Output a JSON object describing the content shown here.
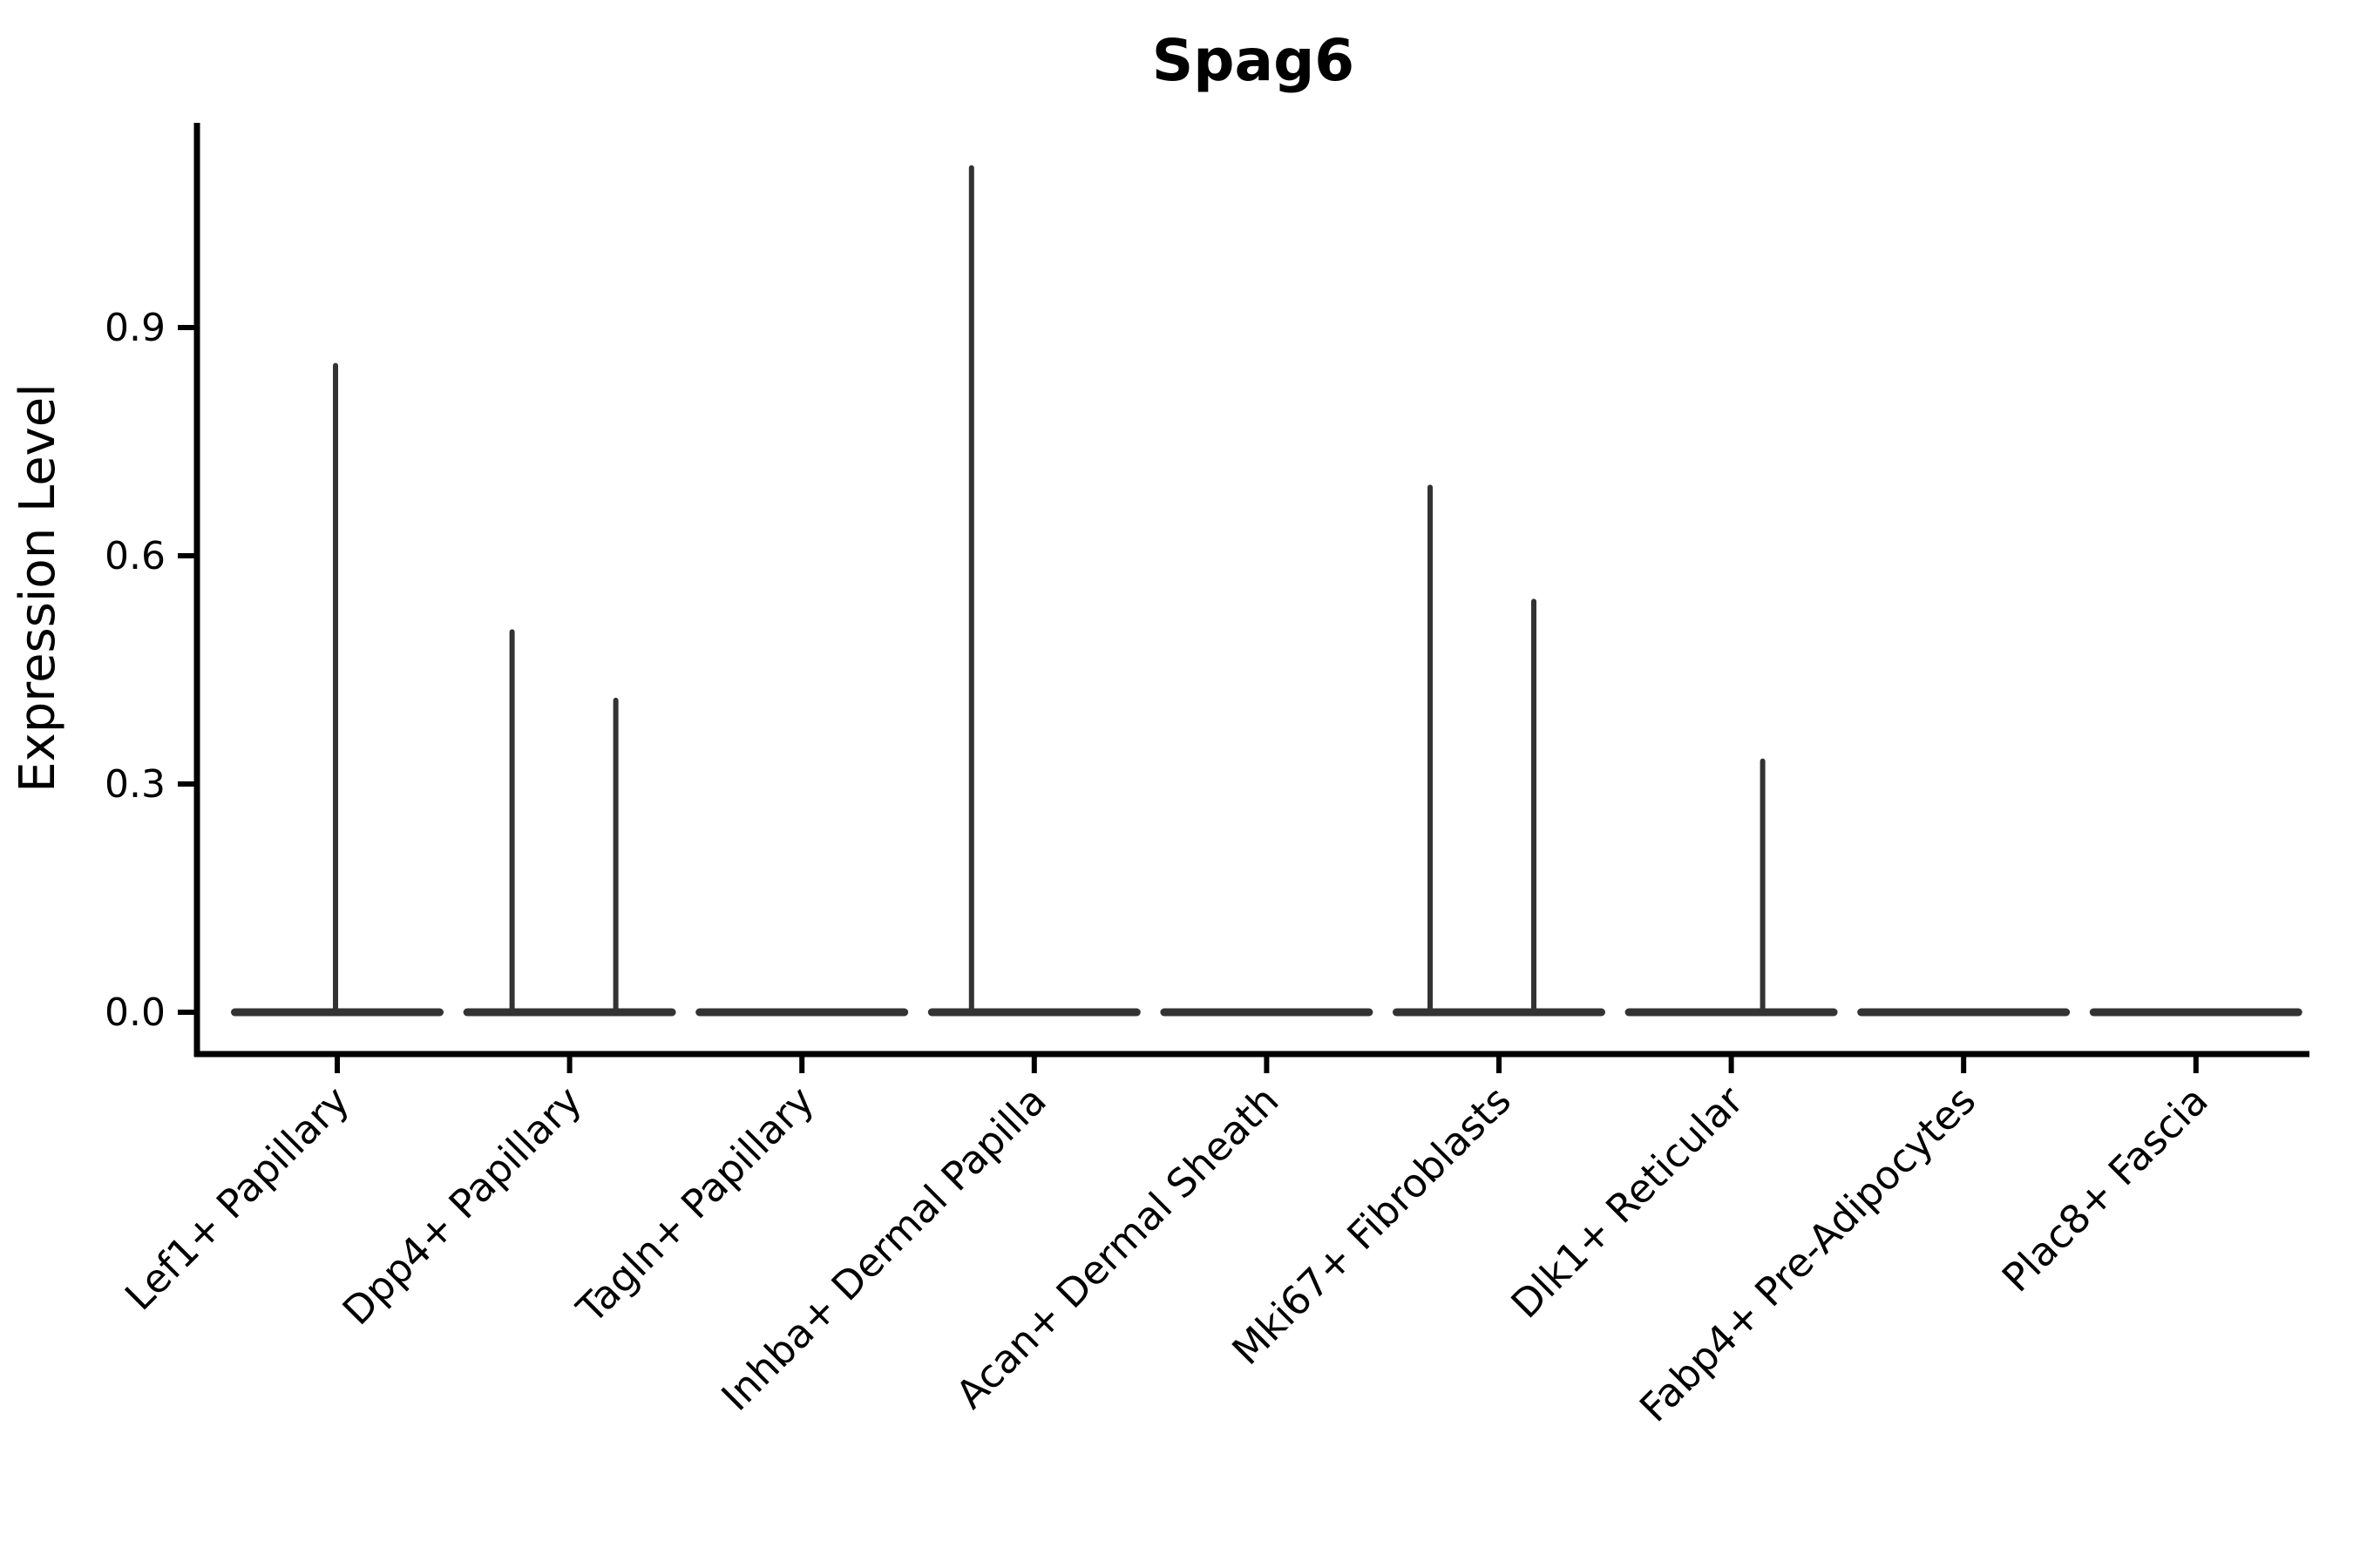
{
  "figure": {
    "title": "Spag6",
    "y_axis_label": "Expression Level"
  },
  "chart_data": {
    "type": "violin",
    "title": "Spag6",
    "xlabel": "",
    "ylabel": "Expression Level",
    "y_ticks": [
      0.0,
      0.3,
      0.6,
      0.9
    ],
    "y_tick_labels": [
      "0.0",
      "0.3",
      "0.6",
      "0.9"
    ],
    "ylim": [
      -0.05,
      1.17
    ],
    "grid": false,
    "legend": "none",
    "categories": [
      "Lef1+ Papillary",
      "Dpp4+ Papillary",
      "Tagln+ Papillary",
      "Inhba+ Dermal Papilla",
      "Acan+ Dermal Sheath",
      "Mki67+ Fibroblasts",
      "Dlk1+ Reticular",
      "Fabp4+ Pre-Adipocytes",
      "Plac8+ Fascia"
    ],
    "series": [
      {
        "name": "Lef1+ Papillary",
        "baseline_value": 0.0,
        "max_value": 0.85,
        "spikes": [
          {
            "offset": -2,
            "value": 0.85
          }
        ]
      },
      {
        "name": "Dpp4+ Papillary",
        "baseline_value": 0.0,
        "max_value": 0.5,
        "spikes": [
          {
            "offset": -66,
            "value": 0.5
          },
          {
            "offset": 53,
            "value": 0.41
          }
        ]
      },
      {
        "name": "Tagln+ Papillary",
        "baseline_value": 0.0,
        "max_value": 0.0,
        "spikes": []
      },
      {
        "name": "Inhba+ Dermal Papilla",
        "baseline_value": 0.0,
        "max_value": 1.11,
        "spikes": [
          {
            "offset": -72,
            "value": 1.11
          }
        ]
      },
      {
        "name": "Acan+ Dermal Sheath",
        "baseline_value": 0.0,
        "max_value": 0.0,
        "spikes": []
      },
      {
        "name": "Mki67+ Fibroblasts",
        "baseline_value": 0.0,
        "max_value": 0.69,
        "spikes": [
          {
            "offset": -79,
            "value": 0.69
          },
          {
            "offset": 40,
            "value": 0.54
          }
        ]
      },
      {
        "name": "Dlk1+ Reticular",
        "baseline_value": 0.0,
        "max_value": 0.33,
        "spikes": [
          {
            "offset": 36,
            "value": 0.33
          }
        ]
      },
      {
        "name": "Fabp4+ Pre-Adipocytes",
        "baseline_value": 0.0,
        "max_value": 0.0,
        "spikes": []
      },
      {
        "name": "Plac8+ Fascia",
        "baseline_value": 0.0,
        "max_value": 0.0,
        "spikes": []
      }
    ],
    "colors": {
      "violin": "#333333",
      "axis": "#000000",
      "text": "#000000",
      "background": "#ffffff"
    }
  }
}
